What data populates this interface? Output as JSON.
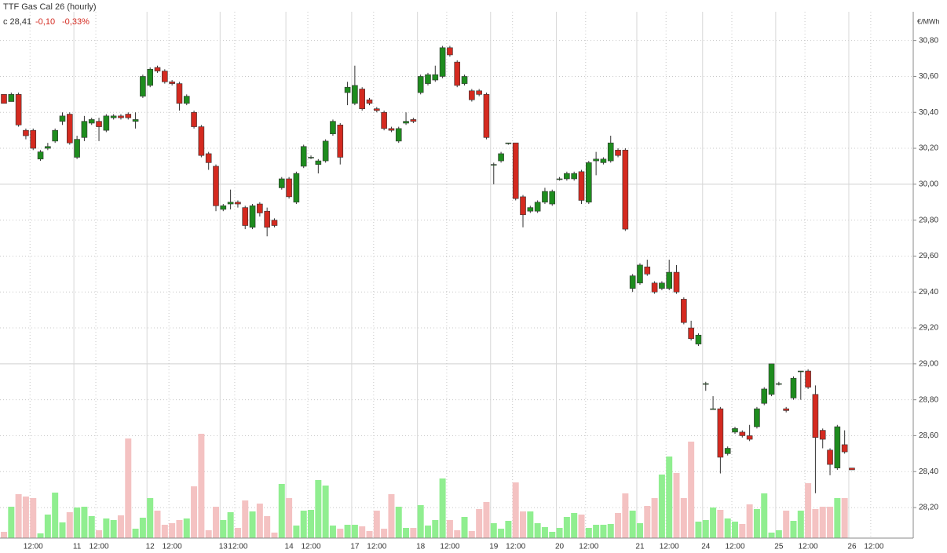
{
  "chart_data": {
    "type": "candlestick",
    "title": "TTF Gas Cal 26 (hourly)",
    "subtitle": [
      "c 28,41",
      "-0,10",
      "-0,33%"
    ],
    "y_axis_label": "€/MWh",
    "up_color": "#1e8c1e",
    "down_color": "#d42a20",
    "volume_up_color": "#90ee90",
    "volume_down_color": "#f4c2c2",
    "grid": true,
    "categories": [
      null,
      null,
      null,
      null,
      "12:00",
      null,
      null,
      null,
      null,
      null,
      "11",
      null,
      null,
      "12:00",
      null,
      null,
      null,
      null,
      null,
      null,
      "12",
      null,
      null,
      "12:00",
      null,
      null,
      null,
      null,
      null,
      null,
      "13",
      null,
      "12:00",
      null,
      null,
      null,
      null,
      null,
      null,
      "14",
      null,
      null,
      "12:00",
      null,
      null,
      null,
      null,
      null,
      "17",
      null,
      null,
      "12:00",
      null,
      null,
      null,
      null,
      null,
      "18",
      null,
      null,
      null,
      "12:00",
      null,
      null,
      null,
      null,
      null,
      "19",
      null,
      null,
      "12:00",
      null,
      null,
      null,
      null,
      null,
      "20",
      null,
      null,
      null,
      "12:00",
      null,
      null,
      null,
      null,
      null,
      null,
      "21",
      null,
      null,
      null,
      "12:00",
      null,
      null,
      null,
      null,
      "24",
      null,
      null,
      null,
      "12:00",
      null,
      null,
      null,
      null,
      null,
      "25",
      null,
      null,
      null,
      "12:00",
      null,
      null,
      null,
      null,
      null,
      "26",
      null,
      null,
      "12:00"
    ],
    "open": [
      30.5,
      30.46,
      30.5,
      30.3,
      30.3,
      30.14,
      30.2,
      30.24,
      30.35,
      30.39,
      30.15,
      30.26,
      30.34,
      30.35,
      30.3,
      30.37,
      30.38,
      30.39,
      30.35,
      30.49,
      30.55,
      30.65,
      30.63,
      30.57,
      30.56,
      30.45,
      30.4,
      30.32,
      30.17,
      30.1,
      29.86,
      29.89,
      29.9,
      29.87,
      29.76,
      29.89,
      29.85,
      29.8,
      29.98,
      30.03,
      29.9,
      30.1,
      30.15,
      30.11,
      30.13,
      30.28,
      30.33,
      30.51,
      30.45,
      30.53,
      30.47,
      30.42,
      30.4,
      30.31,
      30.24,
      30.34,
      30.36,
      30.51,
      30.56,
      30.58,
      30.6,
      30.76,
      30.68,
      30.56,
      30.52,
      30.52,
      30.5,
      30.11,
      30.13,
      30.23,
      30.23,
      29.93,
      29.85,
      29.85,
      29.9,
      29.89,
      30.03,
      30.03,
      30.03,
      30.07,
      29.9,
      30.13,
      30.12,
      30.13,
      30.19,
      30.19,
      29.42,
      29.45,
      29.54,
      29.45,
      29.42,
      29.42,
      29.51,
      29.36,
      29.2,
      29.11,
      28.89,
      28.75,
      28.75,
      28.5,
      28.62,
      28.62,
      28.6,
      28.65,
      28.78,
      28.83,
      28.89,
      28.75,
      28.81,
      28.96,
      28.96,
      28.83,
      28.63,
      28.52,
      28.42,
      28.55,
      28.42,
      null,
      null,
      null
    ],
    "high": [
      30.5,
      30.51,
      30.51,
      30.31,
      30.31,
      30.19,
      30.23,
      30.31,
      30.4,
      30.4,
      30.27,
      30.38,
      30.37,
      30.37,
      30.39,
      30.39,
      30.39,
      30.4,
      30.4,
      30.61,
      30.65,
      30.66,
      30.64,
      30.58,
      30.57,
      30.5,
      30.41,
      30.33,
      30.18,
      30.11,
      29.89,
      29.97,
      29.91,
      29.88,
      29.89,
      29.9,
      29.87,
      29.81,
      30.04,
      30.04,
      30.07,
      30.22,
      30.16,
      30.14,
      30.25,
      30.36,
      30.34,
      30.57,
      30.66,
      30.54,
      30.48,
      30.43,
      30.41,
      30.32,
      30.32,
      30.4,
      30.37,
      30.61,
      30.62,
      30.66,
      30.77,
      30.77,
      30.69,
      30.61,
      30.53,
      30.53,
      30.51,
      30.12,
      30.18,
      30.23,
      30.23,
      29.94,
      29.88,
      29.91,
      29.98,
      29.97,
      30.04,
      30.07,
      30.07,
      30.08,
      30.13,
      30.18,
      30.15,
      30.27,
      30.2,
      30.2,
      29.5,
      29.56,
      29.58,
      29.46,
      29.46,
      29.58,
      29.55,
      29.37,
      29.24,
      29.17,
      28.9,
      28.82,
      28.76,
      28.54,
      28.65,
      28.63,
      28.66,
      28.76,
      28.87,
      29.0,
      28.9,
      28.76,
      28.93,
      28.96,
      28.97,
      28.88,
      28.64,
      28.53,
      28.66,
      28.63,
      28.42,
      null,
      null,
      null
    ],
    "low": [
      30.45,
      30.46,
      30.32,
      30.25,
      30.19,
      30.13,
      30.19,
      30.23,
      30.33,
      30.22,
      30.14,
      30.24,
      30.33,
      30.24,
      30.29,
      30.36,
      30.36,
      30.36,
      30.31,
      30.48,
      30.54,
      30.62,
      30.56,
      30.55,
      30.41,
      30.44,
      30.31,
      30.15,
      30.08,
      29.85,
      29.85,
      29.86,
      29.87,
      29.75,
      29.75,
      29.82,
      29.71,
      29.76,
      29.97,
      29.92,
      29.89,
      30.09,
      30.14,
      30.06,
      30.12,
      30.27,
      30.11,
      30.44,
      30.44,
      30.41,
      30.44,
      30.4,
      30.3,
      30.29,
      30.23,
      30.33,
      30.34,
      30.5,
      30.55,
      30.57,
      30.59,
      30.71,
      30.54,
      30.55,
      30.46,
      30.49,
      30.25,
      30.0,
      30.12,
      30.22,
      29.91,
      29.76,
      29.84,
      29.84,
      29.89,
      29.88,
      30.02,
      30.02,
      30.02,
      29.89,
      29.89,
      30.05,
      30.11,
      30.12,
      30.15,
      29.74,
      29.4,
      29.44,
      29.49,
      29.39,
      29.41,
      29.41,
      29.39,
      29.22,
      29.13,
      29.1,
      28.85,
      28.75,
      28.39,
      28.49,
      28.61,
      28.59,
      28.57,
      28.64,
      28.77,
      28.82,
      28.88,
      28.73,
      28.8,
      28.8,
      28.86,
      28.28,
      28.53,
      28.38,
      28.41,
      28.5,
      28.41,
      null,
      null,
      null
    ],
    "close": [
      30.45,
      30.5,
      30.33,
      30.27,
      30.2,
      30.18,
      30.21,
      30.3,
      30.38,
      30.23,
      30.25,
      30.35,
      30.36,
      30.32,
      30.38,
      30.38,
      30.37,
      30.37,
      30.36,
      30.6,
      30.64,
      30.63,
      30.57,
      30.56,
      30.45,
      30.49,
      30.32,
      30.16,
      30.12,
      29.88,
      29.88,
      29.9,
      29.89,
      29.77,
      29.88,
      29.84,
      29.76,
      29.77,
      30.03,
      29.93,
      30.06,
      30.21,
      30.15,
      30.13,
      30.24,
      30.35,
      30.15,
      30.54,
      30.55,
      30.42,
      30.45,
      30.41,
      30.31,
      30.3,
      30.31,
      30.35,
      30.35,
      30.6,
      30.61,
      30.61,
      30.76,
      30.72,
      30.55,
      30.6,
      30.47,
      30.5,
      30.26,
      30.11,
      30.17,
      30.23,
      29.92,
      29.83,
      29.87,
      29.9,
      29.96,
      29.96,
      30.03,
      30.06,
      30.06,
      29.91,
      30.12,
      30.14,
      30.14,
      30.23,
      30.16,
      29.75,
      29.49,
      29.55,
      29.5,
      29.4,
      29.45,
      29.51,
      29.4,
      29.23,
      29.14,
      29.16,
      28.89,
      28.75,
      28.48,
      28.53,
      28.64,
      28.6,
      28.58,
      28.75,
      28.86,
      29.0,
      28.89,
      28.74,
      28.92,
      28.96,
      28.87,
      28.59,
      28.58,
      28.44,
      28.65,
      28.51,
      28.41,
      null,
      null,
      null
    ],
    "volume": [
      8,
      40,
      56,
      53,
      51,
      6,
      30,
      58,
      20,
      33,
      39,
      40,
      28,
      10,
      25,
      23,
      29,
      127,
      12,
      26,
      51,
      35,
      17,
      19,
      23,
      25,
      66,
      133,
      10,
      40,
      23,
      33,
      13,
      48,
      34,
      44,
      28,
      7,
      69,
      51,
      16,
      35,
      36,
      74,
      67,
      16,
      12,
      17,
      17,
      15,
      9,
      35,
      12,
      56,
      40,
      13,
      13,
      42,
      16,
      23,
      76,
      23,
      10,
      27,
      9,
      37,
      46,
      19,
      12,
      22,
      71,
      34,
      34,
      19,
      14,
      8,
      13,
      27,
      32,
      30,
      13,
      17,
      17,
      18,
      32,
      57,
      35,
      19,
      41,
      51,
      81,
      104,
      83,
      51,
      123,
      21,
      23,
      39,
      36,
      25,
      21,
      18,
      43,
      37,
      57,
      7,
      10,
      35,
      22,
      35,
      70,
      37,
      40,
      40,
      51,
      51,
      null,
      null,
      null,
      null
    ],
    "vlim": [
      0,
      150
    ],
    "ylim": [
      28.03,
      30.96
    ],
    "yticks": [
      {
        "value": 28.2,
        "label": "28,20"
      },
      {
        "value": 28.4,
        "label": "28,40"
      },
      {
        "value": 28.6,
        "label": "28,60"
      },
      {
        "value": 28.8,
        "label": "28,80"
      },
      {
        "value": 29.0,
        "label": "29,00"
      },
      {
        "value": 29.2,
        "label": "29,20"
      },
      {
        "value": 29.4,
        "label": "29,40"
      },
      {
        "value": 29.6,
        "label": "29,60"
      },
      {
        "value": 29.8,
        "label": "29,80"
      },
      {
        "value": 30.0,
        "label": "30,00"
      },
      {
        "value": 30.2,
        "label": "30,20"
      },
      {
        "value": 30.4,
        "label": "30,40"
      },
      {
        "value": 30.6,
        "label": "30,60"
      },
      {
        "value": 30.8,
        "label": "30,80"
      }
    ]
  }
}
